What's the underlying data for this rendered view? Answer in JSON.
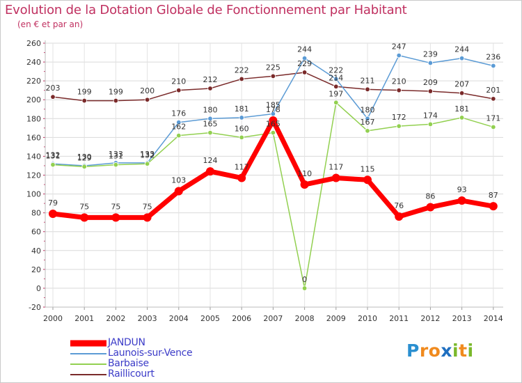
{
  "header": {
    "title": "Evolution de la Dotation Globale de Fonctionnement par Habitant",
    "subtitle": "(en € et par an)"
  },
  "logo": {
    "text": "Proxiti",
    "letters": [
      {
        "ch": "P",
        "color": "#2a8fd0"
      },
      {
        "ch": "r",
        "color": "#f08a1e"
      },
      {
        "ch": "o",
        "color": "#f08a1e"
      },
      {
        "ch": "x",
        "color": "#1f6fc0"
      },
      {
        "ch": "i",
        "color": "#7ab82b"
      },
      {
        "ch": "t",
        "color": "#f08a1e"
      },
      {
        "ch": "i",
        "color": "#7ab82b"
      }
    ]
  },
  "chart_data": {
    "type": "line",
    "title": "Evolution de la Dotation Globale de Fonctionnement par Habitant",
    "subtitle": "(en € et par an)",
    "xlabel": "",
    "ylabel": "",
    "categories": [
      "2000",
      "2001",
      "2002",
      "2003",
      "2004",
      "2005",
      "2006",
      "2007",
      "2008",
      "2009",
      "2010",
      "2011",
      "2012",
      "2013",
      "2014"
    ],
    "yticks": [
      "-20",
      "0",
      "20",
      "40",
      "60",
      "80",
      "100",
      "120",
      "140",
      "160",
      "180",
      "200",
      "220",
      "240",
      "260"
    ],
    "ylim": [
      -20,
      260
    ],
    "grid": true,
    "legend": "bottom-left",
    "series": [
      {
        "name": "Raillicourt",
        "color": "#7a2a2a",
        "values": [
          203,
          199,
          199,
          200,
          210,
          212,
          222,
          225,
          229,
          214,
          211,
          210,
          209,
          207,
          201
        ]
      },
      {
        "name": "Launois-sur-Vence",
        "color": "#5b9bd5",
        "values": [
          132,
          130,
          133,
          133,
          176,
          180,
          181,
          185,
          244,
          222,
          180,
          247,
          239,
          244,
          236
        ]
      },
      {
        "name": "Barbaise",
        "color": "#92d050",
        "values": [
          131,
          129,
          131,
          132,
          162,
          165,
          160,
          165,
          0,
          197,
          167,
          172,
          174,
          181,
          171
        ]
      },
      {
        "name": "JANDUN",
        "color": "#ff0000",
        "values": [
          79,
          75,
          75,
          75,
          103,
          124,
          117,
          178,
          110,
          117,
          115,
          76,
          86,
          93,
          87
        ]
      }
    ],
    "legend_order": [
      "JANDUN",
      "Launois-sur-Vence",
      "Barbaise",
      "Raillicourt"
    ]
  }
}
